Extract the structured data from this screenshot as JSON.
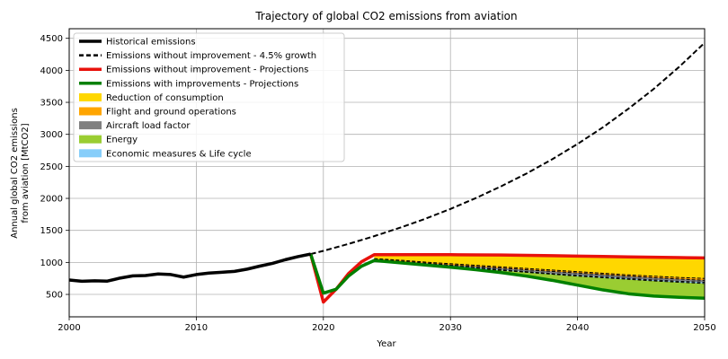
{
  "chart_data": {
    "type": "area",
    "title": "Trajectory of global CO2 emissions from aviation",
    "xlabel": "Year",
    "ylabel_lines": [
      "Annual global CO2 emissions",
      "from aviation [MtCO2]"
    ],
    "xlim": [
      2000,
      2050
    ],
    "ylim": [
      150,
      4650
    ],
    "xticks": [
      2000,
      2010,
      2020,
      2030,
      2040,
      2050
    ],
    "yticks": [
      500,
      1000,
      1500,
      2000,
      2500,
      3000,
      3500,
      4000,
      4500
    ],
    "grid": true,
    "legend_position": "top-left",
    "legend": [
      {
        "label": "Historical emissions",
        "kind": "line",
        "color": "#000000",
        "dash": "solid",
        "width": 3
      },
      {
        "label": "Emissions without improvement - 4.5% growth",
        "kind": "line",
        "color": "#000000",
        "dash": "dashed",
        "width": 2
      },
      {
        "label": "Emissions without improvement - Projections",
        "kind": "line",
        "color": "#e8120c",
        "dash": "solid",
        "width": 3
      },
      {
        "label": "Emissions with improvements - Projections",
        "kind": "line",
        "color": "#008000",
        "dash": "solid",
        "width": 3
      },
      {
        "label": "Reduction of consumption",
        "kind": "patch",
        "color": "#ffd700"
      },
      {
        "label": "Flight and ground operations",
        "kind": "patch",
        "color": "#ffa500"
      },
      {
        "label": "Aircraft load factor",
        "kind": "patch",
        "color": "#808080"
      },
      {
        "label": "Energy",
        "kind": "patch",
        "color": "#9acd32"
      },
      {
        "label": "Economic measures & Life cycle",
        "kind": "patch",
        "color": "#87cefa"
      }
    ],
    "historical": {
      "x": [
        2000,
        2001,
        2002,
        2003,
        2004,
        2005,
        2006,
        2007,
        2008,
        2009,
        2010,
        2011,
        2012,
        2013,
        2014,
        2015,
        2016,
        2017,
        2018,
        2019
      ],
      "y": [
        725,
        705,
        712,
        708,
        755,
        790,
        795,
        820,
        810,
        770,
        810,
        833,
        845,
        860,
        895,
        942,
        985,
        1042,
        1090,
        1130
      ]
    },
    "growth_4_5": {
      "x": [
        2019,
        2020,
        2022,
        2024,
        2026,
        2028,
        2030,
        2032,
        2034,
        2036,
        2038,
        2040,
        2042,
        2044,
        2046,
        2048,
        2050
      ],
      "y": [
        1130,
        1180,
        1290,
        1410,
        1540,
        1680,
        1835,
        2005,
        2190,
        2390,
        2610,
        2850,
        3110,
        3400,
        3710,
        4055,
        4430
      ]
    },
    "projection_no_improvement": {
      "x": [
        2019,
        2020,
        2021,
        2022,
        2023,
        2024,
        2026,
        2028,
        2030,
        2032,
        2034,
        2036,
        2038,
        2040,
        2042,
        2044,
        2046,
        2048,
        2050
      ],
      "y": [
        1130,
        380,
        580,
        830,
        1010,
        1120,
        1120,
        1120,
        1120,
        1118,
        1115,
        1110,
        1105,
        1098,
        1092,
        1086,
        1080,
        1075,
        1070
      ]
    },
    "projection_with_improvements": {
      "x": [
        2019,
        2020,
        2021,
        2022,
        2023,
        2024,
        2026,
        2028,
        2030,
        2032,
        2034,
        2036,
        2038,
        2040,
        2042,
        2044,
        2046,
        2048,
        2050
      ],
      "y": [
        1130,
        520,
        580,
        790,
        940,
        1030,
        995,
        960,
        925,
        885,
        840,
        785,
        720,
        645,
        570,
        510,
        475,
        455,
        440
      ]
    },
    "stack_boundaries": {
      "x": [
        2024,
        2026,
        2028,
        2030,
        2032,
        2034,
        2036,
        2038,
        2040,
        2042,
        2044,
        2046,
        2048,
        2050
      ],
      "after_consumption": [
        1060,
        1035,
        1005,
        980,
        955,
        930,
        905,
        880,
        855,
        830,
        805,
        785,
        765,
        750
      ],
      "after_operations": [
        1050,
        1020,
        990,
        960,
        935,
        910,
        885,
        860,
        835,
        810,
        785,
        760,
        740,
        720
      ],
      "after_load_factor": [
        1045,
        1010,
        975,
        945,
        915,
        885,
        855,
        825,
        800,
        775,
        750,
        725,
        705,
        690
      ],
      "after_economic": [
        1040,
        1005,
        970,
        935,
        905,
        875,
        845,
        815,
        785,
        760,
        735,
        710,
        690,
        670
      ]
    }
  }
}
